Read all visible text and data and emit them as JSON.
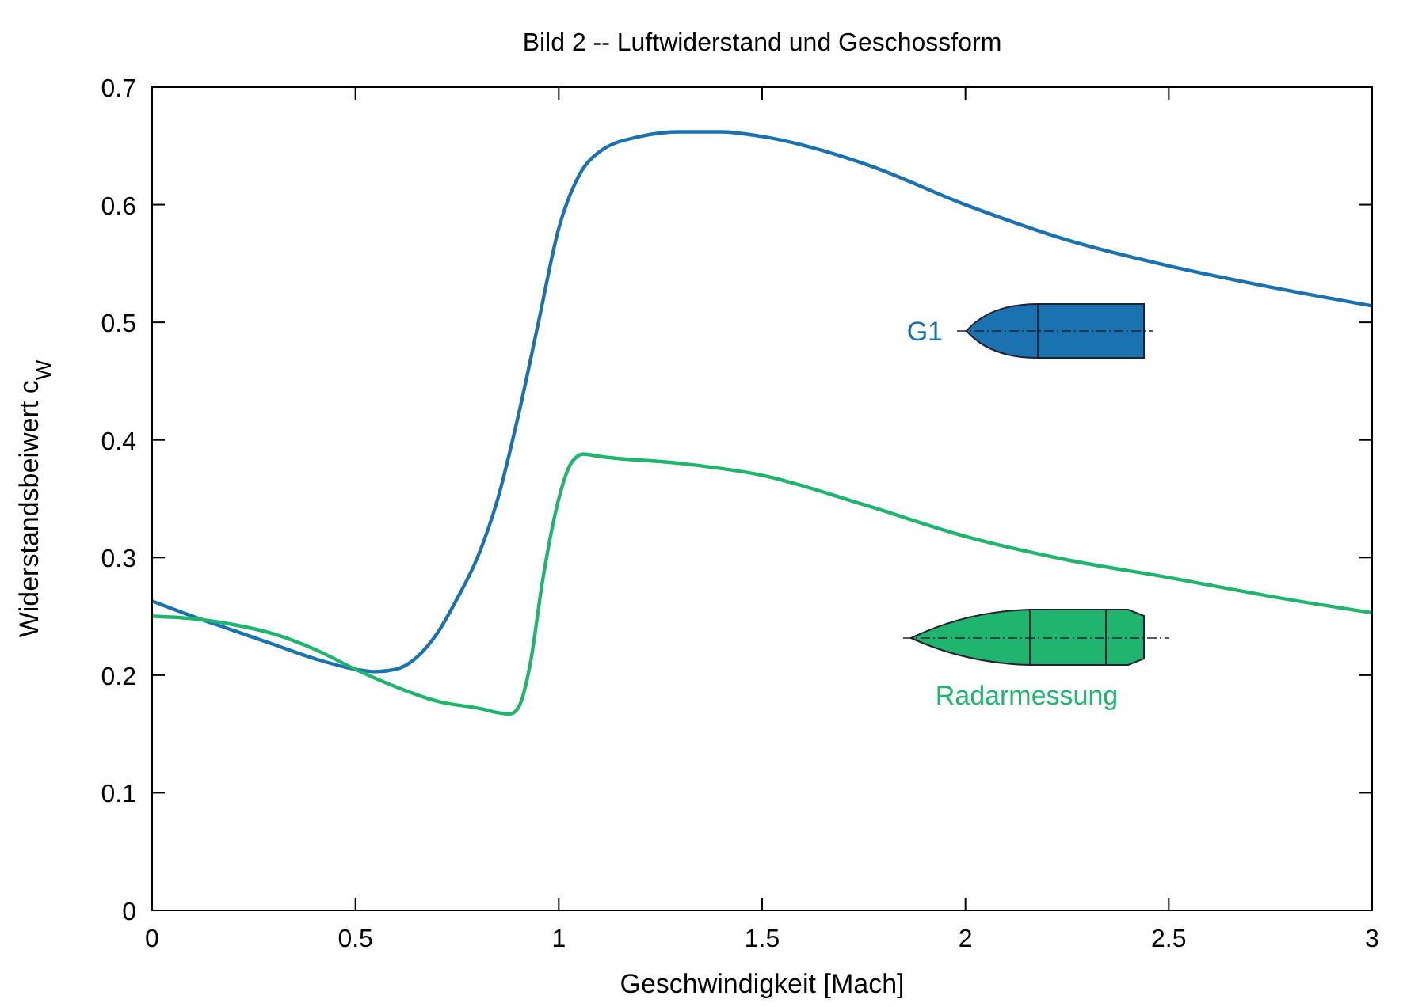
{
  "chart_data": {
    "type": "line",
    "title": "Bild 2 -- Luftwiderstand und Geschossform",
    "xlabel": "Geschwindigkeit [Mach]",
    "ylabel": "Widerstandsbeiwert c$_{W}$",
    "xlim": [
      0,
      3
    ],
    "xticks": [
      0,
      0.5,
      1,
      1.5,
      2,
      2.5,
      3
    ],
    "ylim": [
      0,
      0.7
    ],
    "yticks": [
      0,
      0.1,
      0.2,
      0.3,
      0.4,
      0.5,
      0.6,
      0.7
    ],
    "grid": false,
    "marker": "none",
    "line_style": "solid",
    "series": [
      {
        "name": "G1",
        "color": "#1a72b0",
        "x": [
          0,
          0.1,
          0.2,
          0.3,
          0.4,
          0.5,
          0.55,
          0.6,
          0.65,
          0.7,
          0.75,
          0.8,
          0.85,
          0.9,
          0.95,
          1.0,
          1.05,
          1.1,
          1.2,
          1.3,
          1.4,
          1.5,
          1.75,
          2.0,
          2.25,
          2.5,
          2.75,
          3.0
        ],
        "values": [
          0.263,
          0.25,
          0.238,
          0.226,
          0.214,
          0.205,
          0.203,
          0.205,
          0.215,
          0.235,
          0.265,
          0.3,
          0.35,
          0.42,
          0.5,
          0.58,
          0.625,
          0.645,
          0.658,
          0.662,
          0.662,
          0.658,
          0.635,
          0.6,
          0.57,
          0.548,
          0.53,
          0.514
        ]
      },
      {
        "name": "Radarmessung",
        "color": "#1fb56e",
        "x": [
          0,
          0.1,
          0.2,
          0.3,
          0.4,
          0.5,
          0.6,
          0.7,
          0.8,
          0.88,
          0.9,
          0.93,
          0.96,
          1.0,
          1.03,
          1.06,
          1.1,
          1.3,
          1.5,
          1.75,
          2.0,
          2.25,
          2.5,
          2.75,
          3.0
        ],
        "values": [
          0.25,
          0.248,
          0.243,
          0.235,
          0.222,
          0.205,
          0.19,
          0.178,
          0.172,
          0.167,
          0.172,
          0.21,
          0.28,
          0.35,
          0.38,
          0.388,
          0.386,
          0.38,
          0.37,
          0.345,
          0.318,
          0.298,
          0.283,
          0.267,
          0.253
        ]
      }
    ]
  }
}
